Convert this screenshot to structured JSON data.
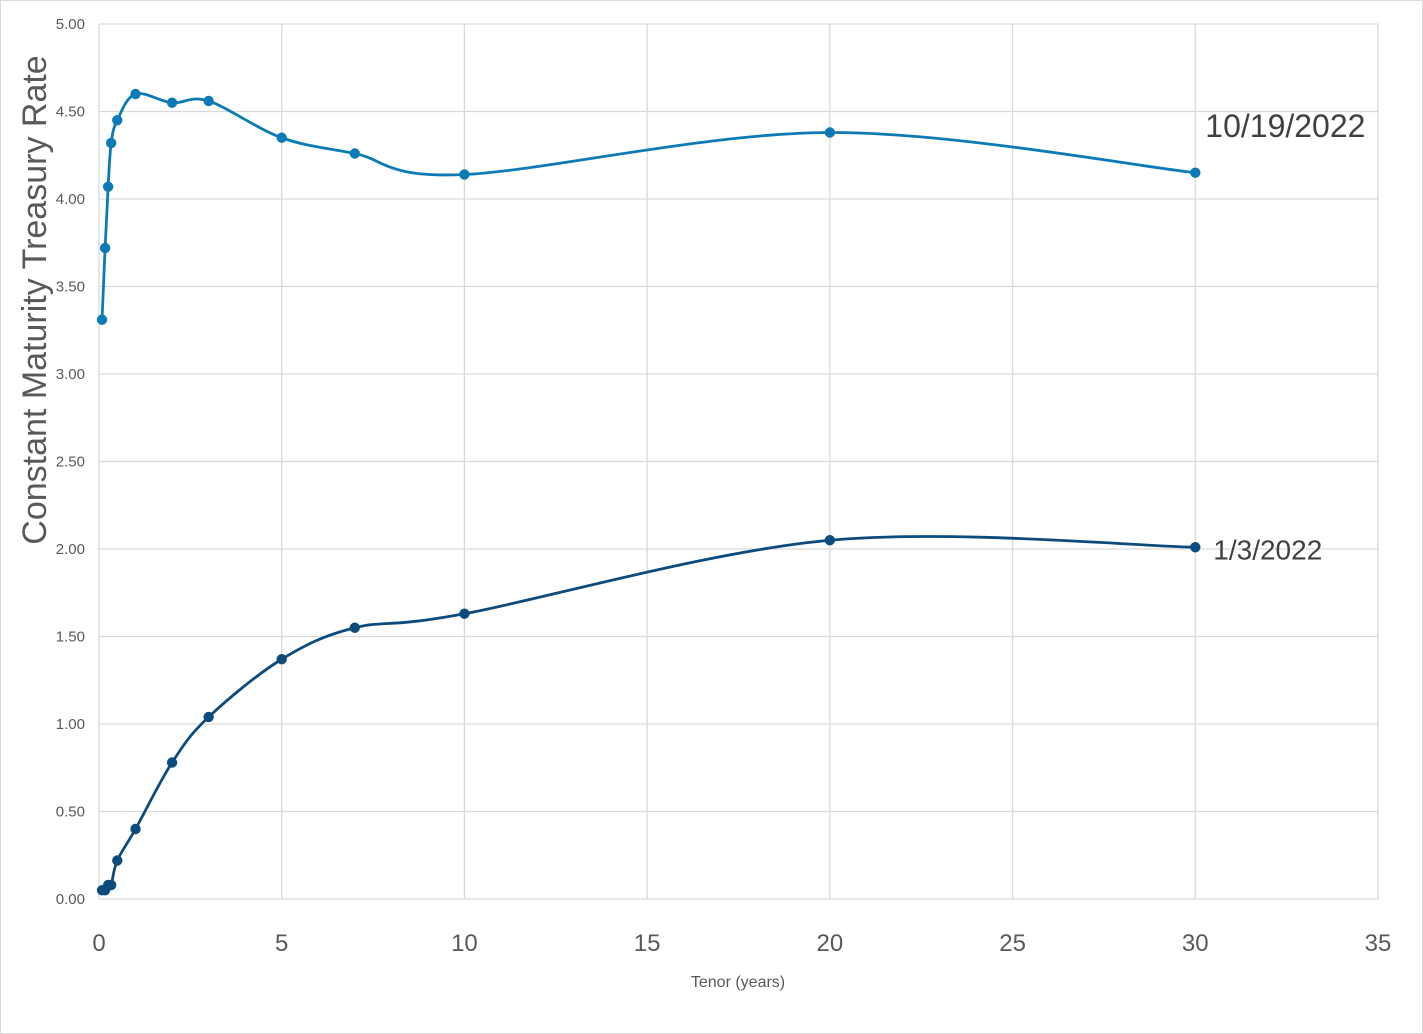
{
  "chart_data": {
    "type": "scatter",
    "title": "",
    "xlabel": "Tenor (years)",
    "ylabel": "Constant Maturity Treasury Rate",
    "xlim": [
      0,
      35
    ],
    "ylim": [
      0,
      5
    ],
    "x_ticks": [
      "0",
      "5",
      "10",
      "15",
      "20",
      "25",
      "30",
      "35"
    ],
    "y_ticks": [
      "0.00",
      "0.50",
      "1.00",
      "1.50",
      "2.00",
      "2.50",
      "3.00",
      "3.50",
      "4.00",
      "4.50",
      "5.00"
    ],
    "grid": true,
    "smooth_lines": true,
    "series": [
      {
        "name": "10/19/2022",
        "color": "#0c7bb5",
        "x": [
          0.083,
          0.167,
          0.25,
          0.333,
          0.5,
          1,
          2,
          3,
          5,
          7,
          10,
          20,
          30
        ],
        "y": [
          3.31,
          3.72,
          4.07,
          4.32,
          4.45,
          4.6,
          4.55,
          4.56,
          4.35,
          4.26,
          4.14,
          4.38,
          4.15
        ]
      },
      {
        "name": "1/3/2022",
        "color": "#0d4b7d",
        "x": [
          0.083,
          0.167,
          0.25,
          0.333,
          0.5,
          1,
          2,
          3,
          5,
          7,
          10,
          20,
          30
        ],
        "y": [
          0.05,
          0.05,
          0.08,
          0.08,
          0.22,
          0.4,
          0.78,
          1.04,
          1.37,
          1.55,
          1.63,
          2.05,
          2.01
        ]
      }
    ]
  }
}
